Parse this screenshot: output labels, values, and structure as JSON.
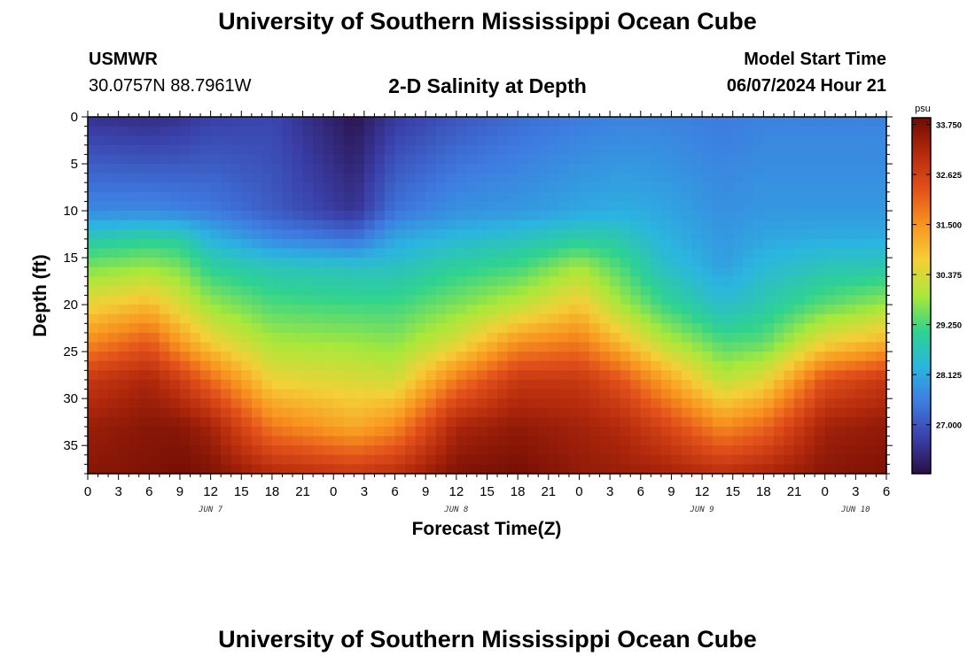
{
  "header": {
    "title": "University of Southern Mississippi Ocean Cube",
    "station": "USMWR",
    "coords": "30.0757N  88.7961W",
    "subtitle": "2-D Salinity at Depth",
    "run_label": "Model Start Time",
    "run_value": "06/07/2024 Hour 21"
  },
  "footer": {
    "title": "University of Southern Mississippi Ocean Cube"
  },
  "chart_data": {
    "type": "heatmap",
    "title": "2-D Salinity at Depth",
    "xlabel": "Forecast Time(Z)",
    "ylabel": "Depth (ft)",
    "x_tick_labels": [
      "0",
      "3",
      "6",
      "9",
      "12",
      "15",
      "18",
      "21",
      "0",
      "3",
      "6",
      "9",
      "12",
      "15",
      "18",
      "21",
      "0",
      "3",
      "6",
      "9",
      "12",
      "15",
      "18",
      "21",
      "0",
      "3",
      "6"
    ],
    "x_day_labels": [
      {
        "label": "JUN 7",
        "tick_index": 4
      },
      {
        "label": "JUN 8",
        "tick_index": 12
      },
      {
        "label": "JUN 9",
        "tick_index": 20
      },
      {
        "label": "JUN 10",
        "tick_index": 25
      }
    ],
    "x_range_hours": [
      0,
      78
    ],
    "y_tick_labels": [
      "0",
      "5",
      "10",
      "15",
      "20",
      "25",
      "30",
      "35"
    ],
    "y_range_ft": [
      0,
      38
    ],
    "y_inverted": true,
    "colorbar": {
      "unit": "psu",
      "range": [
        25.9,
        33.9
      ],
      "tick_labels": [
        "33.750",
        "32.625",
        "31.500",
        "30.375",
        "29.250",
        "28.125",
        "27.000"
      ],
      "colors": [
        "#2a0f45",
        "#3a3fa8",
        "#3e7be0",
        "#2bb5e0",
        "#2fd38f",
        "#a9e83a",
        "#f4cf38",
        "#f8941f",
        "#e2501a",
        "#b42a0c",
        "#6e0b04"
      ]
    },
    "depth_ft": [
      0,
      10,
      13,
      16,
      20,
      24,
      28,
      33,
      38
    ],
    "profiles": [
      {
        "hour": 0,
        "salinity": [
          26.5,
          27.7,
          28.8,
          29.6,
          30.6,
          31.6,
          32.8,
          33.4,
          33.6
        ]
      },
      {
        "hour": 6,
        "salinity": [
          26.4,
          27.7,
          29.0,
          29.8,
          31.0,
          32.2,
          33.2,
          33.6,
          33.7
        ]
      },
      {
        "hour": 9,
        "salinity": [
          26.5,
          27.6,
          28.9,
          29.6,
          30.4,
          31.4,
          32.7,
          33.6,
          33.8
        ]
      },
      {
        "hour": 12,
        "salinity": [
          26.7,
          27.5,
          28.3,
          29.0,
          29.8,
          30.7,
          32.0,
          33.3,
          33.7
        ]
      },
      {
        "hour": 18,
        "salinity": [
          26.8,
          27.1,
          27.7,
          28.7,
          29.3,
          29.9,
          30.6,
          31.8,
          33.1
        ]
      },
      {
        "hour": 26,
        "salinity": [
          26.0,
          26.5,
          27.4,
          28.6,
          29.2,
          29.8,
          30.4,
          31.2,
          32.8
        ]
      },
      {
        "hour": 30,
        "salinity": [
          26.6,
          27.4,
          28.1,
          28.6,
          29.2,
          29.7,
          30.3,
          31.6,
          33.0
        ]
      },
      {
        "hour": 36,
        "salinity": [
          27.0,
          27.8,
          28.4,
          29.0,
          29.6,
          30.4,
          31.8,
          33.2,
          33.7
        ]
      },
      {
        "hour": 42,
        "salinity": [
          27.3,
          27.9,
          28.6,
          29.2,
          30.1,
          31.5,
          32.8,
          33.5,
          33.8
        ]
      },
      {
        "hour": 48,
        "salinity": [
          27.5,
          28.1,
          28.9,
          29.9,
          30.8,
          31.8,
          32.8,
          33.3,
          33.5
        ]
      },
      {
        "hour": 52,
        "salinity": [
          27.6,
          28.2,
          28.8,
          29.3,
          29.9,
          31.0,
          32.3,
          33.1,
          33.4
        ]
      },
      {
        "hour": 56,
        "salinity": [
          27.6,
          28.1,
          28.3,
          28.6,
          29.2,
          30.1,
          31.4,
          32.6,
          33.3
        ]
      },
      {
        "hour": 62,
        "salinity": [
          27.5,
          27.8,
          27.9,
          28.0,
          28.5,
          29.3,
          30.1,
          31.6,
          33.0
        ]
      },
      {
        "hour": 66,
        "salinity": [
          27.6,
          27.9,
          28.1,
          28.4,
          28.8,
          29.4,
          30.5,
          32.0,
          33.2
        ]
      },
      {
        "hour": 72,
        "salinity": [
          27.6,
          27.9,
          28.2,
          28.7,
          29.4,
          30.6,
          32.3,
          33.3,
          33.6
        ]
      },
      {
        "hour": 78,
        "salinity": [
          27.6,
          27.9,
          28.2,
          28.8,
          29.8,
          31.1,
          32.8,
          33.5,
          33.7
        ]
      }
    ],
    "grid": false
  }
}
